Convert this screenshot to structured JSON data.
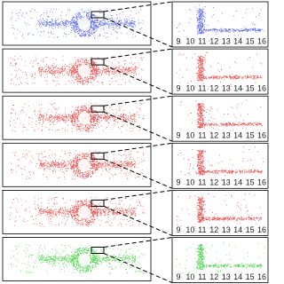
{
  "panels": [
    {
      "color": "#2f3fe0",
      "xticks": [
        9,
        10,
        11,
        12,
        13,
        14,
        15,
        16
      ]
    },
    {
      "color": "#e02020",
      "xticks": [
        9,
        10,
        11,
        12,
        13,
        14,
        15,
        16
      ]
    },
    {
      "color": "#e02020",
      "xticks": [
        9,
        10,
        11,
        12,
        13,
        14,
        15,
        16
      ]
    },
    {
      "color": "#e02020",
      "xticks": [
        9,
        10,
        11,
        12,
        13,
        14,
        15,
        16
      ]
    },
    {
      "color": "#e02020",
      "xticks": [
        9,
        10,
        11,
        12,
        13,
        14,
        15,
        16
      ]
    },
    {
      "color": "#22c822",
      "xticks": [
        9,
        10,
        11,
        12,
        13,
        14,
        15,
        16
      ]
    }
  ]
}
